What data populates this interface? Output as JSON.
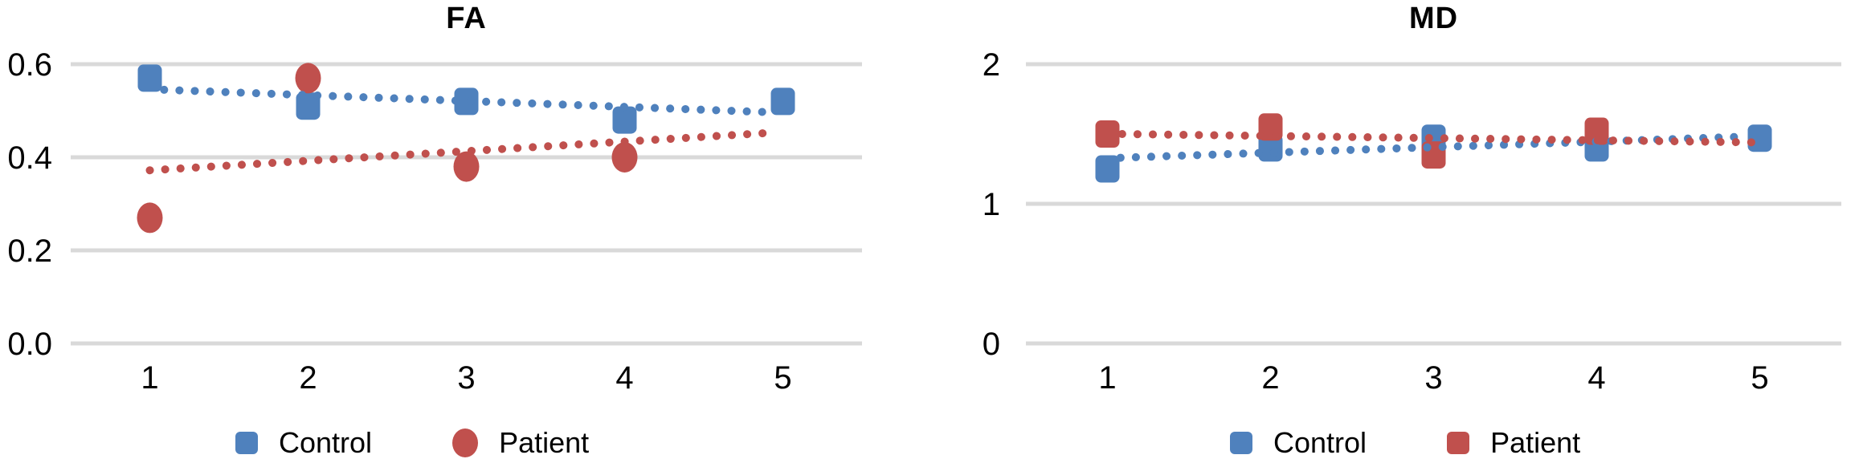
{
  "colors": {
    "control": "#4F81BD",
    "patient": "#C0504D",
    "gridline": "#D9D9D9",
    "text": "#000000",
    "background": "#FFFFFF"
  },
  "chart_data": [
    {
      "type": "scatter",
      "title": "FA",
      "x_categories": [
        "1",
        "2",
        "3",
        "4",
        "5"
      ],
      "ylim": [
        0,
        0.6
      ],
      "ytick_values": [
        0.0,
        0.2,
        0.4,
        0.6
      ],
      "ytick_labels": [
        "0.0",
        "0.2",
        "0.4",
        "0.6"
      ],
      "grid": "horizontal",
      "legend_position": "bottom",
      "series": [
        {
          "name": "Control",
          "color": "#4F81BD",
          "marker": "square",
          "x": [
            1,
            2,
            3,
            4,
            5
          ],
          "y": [
            0.57,
            0.51,
            0.52,
            0.48,
            0.52
          ],
          "trendline": {
            "style": "dotted",
            "x_start": 1.09,
            "y_start": 0.545,
            "x_end": 4.9,
            "y_end": 0.497
          }
        },
        {
          "name": "Patient",
          "color": "#C0504D",
          "marker": "circle",
          "x": [
            1,
            2,
            3,
            4
          ],
          "y": [
            0.27,
            0.57,
            0.38,
            0.4
          ],
          "trendline": {
            "style": "dotted",
            "x_start": 1.0,
            "y_start": 0.372,
            "x_end": 4.94,
            "y_end": 0.453
          }
        }
      ]
    },
    {
      "type": "scatter",
      "title": "MD",
      "x_categories": [
        "1",
        "2",
        "3",
        "4",
        "5"
      ],
      "ylim": [
        0,
        2
      ],
      "ytick_values": [
        0,
        1,
        2
      ],
      "ytick_labels": [
        "0",
        "1",
        "2"
      ],
      "grid": "horizontal",
      "legend_position": "bottom",
      "series": [
        {
          "name": "Control",
          "color": "#4F81BD",
          "marker": "square",
          "x": [
            1,
            2,
            3,
            4,
            5
          ],
          "y": [
            1.25,
            1.4,
            1.47,
            1.4,
            1.47
          ],
          "trendline": {
            "style": "dotted",
            "x_start": 1.08,
            "y_start": 1.33,
            "x_end": 4.88,
            "y_end": 1.48
          }
        },
        {
          "name": "Patient",
          "color": "#C0504D",
          "marker": "square",
          "x": [
            1,
            2,
            3,
            4
          ],
          "y": [
            1.5,
            1.55,
            1.35,
            1.52
          ],
          "trendline": {
            "style": "dotted",
            "x_start": 1.09,
            "y_start": 1.5,
            "x_end": 4.98,
            "y_end": 1.44
          }
        }
      ]
    }
  ]
}
